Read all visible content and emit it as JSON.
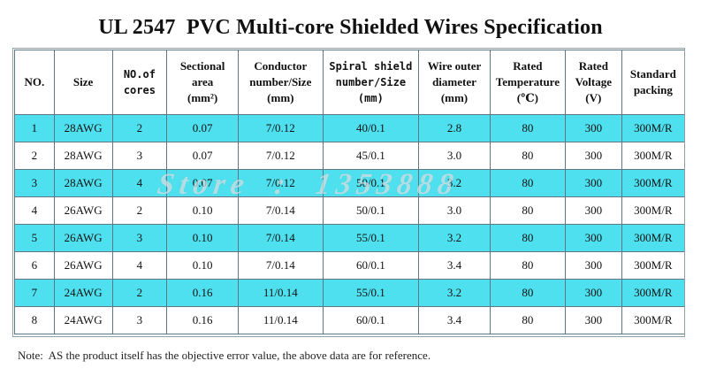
{
  "title": "UL 2547  PVC Multi-core Shielded Wires Specification",
  "table": {
    "headers": [
      [
        "NO."
      ],
      [
        "Size"
      ],
      [
        "NO.of",
        "cores"
      ],
      [
        "Sectional",
        "area",
        "(mm²)"
      ],
      [
        "Conductor",
        "number/Size",
        "(mm)"
      ],
      [
        "Spiral shield",
        "number/Size",
        "(mm)"
      ],
      [
        "Wire outer",
        "diameter",
        "(mm)"
      ],
      [
        "Rated",
        "Temperature",
        "(℃)"
      ],
      [
        "Rated",
        "Voltage",
        "(V)"
      ],
      [
        "Standard",
        "packing"
      ]
    ],
    "rows": [
      [
        "1",
        "28AWG",
        "2",
        "0.07",
        "7/0.12",
        "40/0.1",
        "2.8",
        "80",
        "300",
        "300M/R"
      ],
      [
        "2",
        "28AWG",
        "3",
        "0.07",
        "7/0.12",
        "45/0.1",
        "3.0",
        "80",
        "300",
        "300M/R"
      ],
      [
        "3",
        "28AWG",
        "4",
        "0.07",
        "7/0.12",
        "50/0.1",
        "3.2",
        "80",
        "300",
        "300M/R"
      ],
      [
        "4",
        "26AWG",
        "2",
        "0.10",
        "7/0.14",
        "50/0.1",
        "3.0",
        "80",
        "300",
        "300M/R"
      ],
      [
        "5",
        "26AWG",
        "3",
        "0.10",
        "7/0.14",
        "55/0.1",
        "3.2",
        "80",
        "300",
        "300M/R"
      ],
      [
        "6",
        "26AWG",
        "4",
        "0.10",
        "7/0.14",
        "60/0.1",
        "3.4",
        "80",
        "300",
        "300M/R"
      ],
      [
        "7",
        "24AWG",
        "2",
        "0.16",
        "11/0.14",
        "55/0.1",
        "3.2",
        "80",
        "300",
        "300M/R"
      ],
      [
        "8",
        "24AWG",
        "3",
        "0.16",
        "11/0.14",
        "60/0.1",
        "3.4",
        "80",
        "300",
        "300M/R"
      ]
    ]
  },
  "watermark": "Store  :  1353888",
  "note": "Note:  AS the product itself has the objective error value, the above data are for reference.",
  "colors": {
    "highlight_row": "#4ee0ee",
    "plain_row": "#ffffff",
    "grid_line": "#5f7784"
  }
}
